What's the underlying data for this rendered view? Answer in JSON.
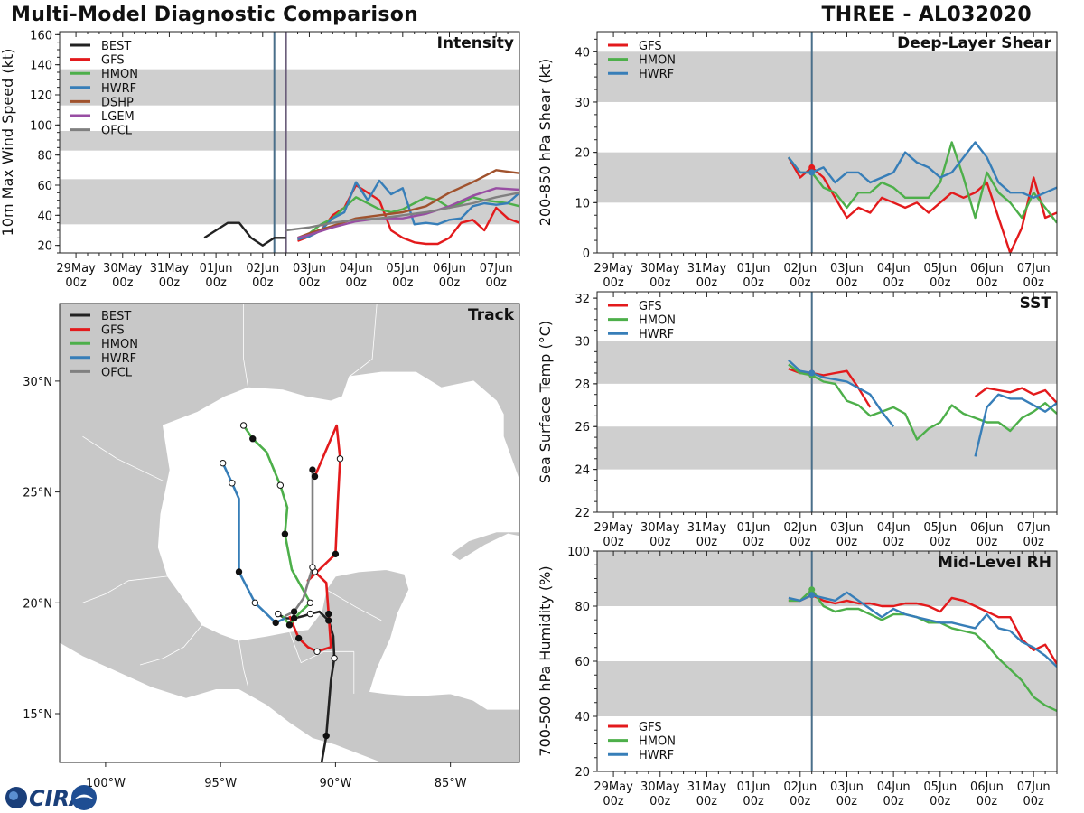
{
  "header": {
    "title": "Multi-Model Diagnostic Comparison",
    "storm": "THREE - AL032020"
  },
  "colors": {
    "BEST": "#222222",
    "GFS": "#e31a1c",
    "HMON": "#4daf4a",
    "HWRF": "#377eb8",
    "DSHP": "#a0522d",
    "LGEM": "#984ea3",
    "OFCL": "#808080",
    "band": "#cfcfcf",
    "land": "#c8c8c8",
    "sea": "#ffffff",
    "vline": "#4a6f8a",
    "vline2": "#6b5e7a"
  },
  "logo": {
    "text": "CIRA"
  },
  "time_ticks": {
    "values": [
      0,
      1,
      2,
      3,
      4,
      5,
      6,
      7,
      8,
      9
    ],
    "labels": [
      [
        "29May",
        "00z"
      ],
      [
        "30May",
        "00z"
      ],
      [
        "31May",
        "00z"
      ],
      [
        "01Jun",
        "00z"
      ],
      [
        "02Jun",
        "00z"
      ],
      [
        "03Jun",
        "00z"
      ],
      [
        "04Jun",
        "00z"
      ],
      [
        "05Jun",
        "00z"
      ],
      [
        "06Jun",
        "00z"
      ],
      [
        "07Jun",
        "00z"
      ]
    ],
    "xlim": [
      -0.35,
      9.5
    ]
  },
  "chart_data": [
    {
      "id": "intensity",
      "type": "line",
      "title": "Intensity",
      "ylabel": "10m Max Wind Speed (kt)",
      "ylim": [
        15,
        162
      ],
      "yticks": [
        20,
        40,
        60,
        80,
        100,
        120,
        140,
        160
      ],
      "bands": [
        [
          34,
          64
        ],
        [
          83,
          96
        ],
        [
          113,
          137
        ]
      ],
      "vlines": [
        {
          "x": 4.25,
          "color": "vline"
        },
        {
          "x": 4.5,
          "color": "vline2"
        }
      ],
      "legend": [
        "BEST",
        "GFS",
        "HMON",
        "HWRF",
        "DSHP",
        "LGEM",
        "OFCL"
      ],
      "series": [
        {
          "name": "BEST",
          "x": [
            2.75,
            3.0,
            3.25,
            3.5,
            3.75,
            4.0,
            4.25,
            4.5
          ],
          "y": [
            25,
            30,
            35,
            35,
            25,
            20,
            25,
            25
          ]
        },
        {
          "name": "GFS",
          "x": [
            4.75,
            5.0,
            5.25,
            5.5,
            5.75,
            6.0,
            6.25,
            6.5,
            6.75,
            7.0,
            7.25,
            7.5,
            7.75,
            8.0,
            8.25,
            8.5,
            8.75,
            9.0,
            9.25,
            9.5
          ],
          "y": [
            23,
            26,
            30,
            40,
            45,
            60,
            55,
            50,
            30,
            25,
            22,
            21,
            21,
            25,
            35,
            37,
            30,
            45,
            38,
            35
          ]
        },
        {
          "name": "HMON",
          "x": [
            4.75,
            5.0,
            5.25,
            5.5,
            5.75,
            6.0,
            6.25,
            6.5,
            6.75,
            7.0,
            7.25,
            7.5,
            7.75,
            8.0,
            8.25,
            8.5,
            8.75,
            9.0,
            9.25,
            9.5
          ],
          "y": [
            24,
            28,
            34,
            38,
            45,
            52,
            48,
            44,
            42,
            44,
            48,
            52,
            50,
            45,
            48,
            52,
            50,
            49,
            48,
            46
          ]
        },
        {
          "name": "HWRF",
          "x": [
            4.75,
            5.0,
            5.25,
            5.5,
            5.75,
            6.0,
            6.25,
            6.5,
            6.75,
            7.0,
            7.25,
            7.5,
            7.75,
            8.0,
            8.25,
            8.5,
            8.75,
            9.0,
            9.25,
            9.5
          ],
          "y": [
            24,
            26,
            30,
            38,
            42,
            62,
            50,
            63,
            54,
            58,
            34,
            35,
            34,
            37,
            38,
            46,
            48,
            47,
            48,
            55
          ]
        },
        {
          "name": "DSHP",
          "x": [
            4.75,
            5.0,
            5.5,
            6.0,
            6.5,
            7.0,
            7.5,
            8.0,
            8.5,
            9.0,
            9.5
          ],
          "y": [
            25,
            28,
            33,
            38,
            40,
            42,
            46,
            55,
            62,
            70,
            68
          ]
        },
        {
          "name": "LGEM",
          "x": [
            4.75,
            5.0,
            5.5,
            6.0,
            6.5,
            7.0,
            7.5,
            8.0,
            8.5,
            9.0,
            9.5
          ],
          "y": [
            25,
            27,
            32,
            36,
            38,
            38,
            41,
            46,
            53,
            58,
            57
          ]
        },
        {
          "name": "OFCL",
          "x": [
            4.5,
            5.0,
            5.5,
            6.0,
            6.5,
            7.0,
            7.5,
            8.0,
            8.5,
            9.0,
            9.5
          ],
          "y": [
            30,
            32,
            35,
            37,
            38,
            40,
            42,
            45,
            48,
            52,
            55
          ]
        }
      ]
    },
    {
      "id": "shear",
      "type": "line",
      "title": "Deep-Layer Shear",
      "ylabel": "200-850 hPa Shear (kt)",
      "ylim": [
        0,
        44
      ],
      "yticks": [
        0,
        10,
        20,
        30,
        40
      ],
      "bands": [
        [
          10,
          20
        ],
        [
          30,
          40
        ]
      ],
      "vlines": [
        {
          "x": 4.25,
          "color": "vline"
        }
      ],
      "legend": [
        "GFS",
        "HMON",
        "HWRF"
      ],
      "series": [
        {
          "name": "GFS",
          "x": [
            3.75,
            4.0,
            4.25,
            4.5,
            4.75,
            5.0,
            5.25,
            5.5,
            5.75,
            6.0,
            6.25,
            6.5,
            6.75,
            7.0,
            7.25,
            7.5,
            7.75,
            8.0,
            8.25,
            8.5,
            8.75,
            9.0,
            9.25,
            9.5
          ],
          "y": [
            19,
            15,
            17,
            15,
            11,
            7,
            9,
            8,
            11,
            10,
            9,
            10,
            8,
            10,
            12,
            11,
            12,
            14,
            7,
            0,
            5,
            15,
            7,
            8
          ]
        },
        {
          "name": "HMON",
          "x": [
            3.75,
            4.0,
            4.25,
            4.5,
            4.75,
            5.0,
            5.25,
            5.5,
            5.75,
            6.0,
            6.25,
            6.5,
            6.75,
            7.0,
            7.25,
            7.5,
            7.75,
            8.0,
            8.25,
            8.5,
            8.75,
            9.0,
            9.25,
            9.5
          ],
          "y": [
            19,
            16,
            16,
            13,
            12,
            9,
            12,
            12,
            14,
            13,
            11,
            11,
            11,
            14,
            22,
            15,
            7,
            16,
            12,
            10,
            7,
            12,
            9,
            6
          ]
        },
        {
          "name": "HWRF",
          "x": [
            3.75,
            4.0,
            4.25,
            4.5,
            4.75,
            5.0,
            5.25,
            5.5,
            5.75,
            6.0,
            6.25,
            6.5,
            6.75,
            7.0,
            7.25,
            7.5,
            7.75,
            8.0,
            8.25,
            8.5,
            8.75,
            9.0,
            9.25,
            9.5
          ],
          "y": [
            19,
            16,
            16,
            17,
            14,
            16,
            16,
            14,
            15,
            16,
            20,
            18,
            17,
            15,
            16,
            19,
            22,
            19,
            14,
            12,
            12,
            11,
            12,
            13
          ]
        }
      ]
    },
    {
      "id": "sst",
      "type": "line",
      "title": "SST",
      "ylabel": "Sea Surface Temp (°C)",
      "ylim": [
        22,
        32.3
      ],
      "yticks": [
        22,
        24,
        26,
        28,
        30,
        32
      ],
      "bands": [
        [
          24,
          26
        ],
        [
          28,
          30
        ]
      ],
      "vlines": [
        {
          "x": 4.25,
          "color": "vline"
        }
      ],
      "legend": [
        "GFS",
        "HMON",
        "HWRF"
      ],
      "series": [
        {
          "name": "GFS",
          "x": [
            3.75,
            4.0,
            4.25,
            4.5,
            4.75,
            5.0,
            5.25,
            5.5
          ],
          "y": [
            28.7,
            28.5,
            28.5,
            28.4,
            28.5,
            28.6,
            27.8,
            26.9
          ]
        },
        {
          "name": "GFS",
          "x": [
            7.75,
            8.0,
            8.25,
            8.5,
            8.75,
            9.0,
            9.25,
            9.5
          ],
          "y": [
            27.4,
            27.8,
            27.7,
            27.6,
            27.8,
            27.5,
            27.7,
            27.1
          ]
        },
        {
          "name": "HMON",
          "x": [
            3.75,
            4.0,
            4.25,
            4.5,
            4.75,
            5.0,
            5.25,
            5.5,
            5.75,
            6.0,
            6.25,
            6.5,
            6.75,
            7.0,
            7.25,
            7.5,
            7.75,
            8.0,
            8.25,
            8.5,
            8.75,
            9.0,
            9.25,
            9.5
          ],
          "y": [
            28.9,
            28.5,
            28.4,
            28.1,
            28.0,
            27.2,
            27.0,
            26.5,
            26.7,
            26.9,
            26.6,
            25.4,
            25.9,
            26.2,
            27.0,
            26.6,
            26.4,
            26.2,
            26.2,
            25.8,
            26.4,
            26.7,
            27.1,
            26.6
          ]
        },
        {
          "name": "HWRF",
          "x": [
            3.75,
            4.0,
            4.25,
            4.5,
            4.75,
            5.0,
            5.25,
            5.5,
            5.75,
            6.0
          ],
          "y": [
            29.1,
            28.6,
            28.5,
            28.3,
            28.2,
            28.1,
            27.8,
            27.5,
            26.7,
            26.0
          ]
        },
        {
          "name": "HWRF",
          "x": [
            7.75,
            8.0,
            8.25,
            8.5,
            8.75,
            9.0,
            9.25,
            9.5
          ],
          "y": [
            24.6,
            26.9,
            27.5,
            27.3,
            27.3,
            27.0,
            26.7,
            27.1
          ]
        }
      ]
    },
    {
      "id": "rh",
      "type": "line",
      "title": "Mid-Level RH",
      "ylabel": "700-500 hPa Humidity (%)",
      "ylim": [
        20,
        100
      ],
      "yticks": [
        20,
        40,
        60,
        80,
        100
      ],
      "bands": [
        [
          40,
          60
        ],
        [
          80,
          100
        ]
      ],
      "vlines": [
        {
          "x": 4.25,
          "color": "vline"
        }
      ],
      "legend": [
        "GFS",
        "HMON",
        "HWRF"
      ],
      "legend_pos": "bottom-left",
      "series": [
        {
          "name": "GFS",
          "x": [
            3.75,
            4.0,
            4.25,
            4.5,
            4.75,
            5.0,
            5.25,
            5.5,
            5.75,
            6.0,
            6.25,
            6.5,
            6.75,
            7.0,
            7.25,
            7.5,
            7.75,
            8.0,
            8.25,
            8.5,
            8.75,
            9.0,
            9.25,
            9.5
          ],
          "y": [
            82,
            82,
            84,
            82,
            81,
            82,
            81,
            81,
            80,
            80,
            81,
            81,
            80,
            78,
            83,
            82,
            80,
            78,
            76,
            76,
            68,
            64,
            66,
            59
          ]
        },
        {
          "name": "HMON",
          "x": [
            3.75,
            4.0,
            4.25,
            4.5,
            4.75,
            5.0,
            5.25,
            5.5,
            5.75,
            6.0,
            6.25,
            6.5,
            6.75,
            7.0,
            7.25,
            7.5,
            7.75,
            8.0,
            8.25,
            8.5,
            8.75,
            9.0,
            9.25,
            9.5
          ],
          "y": [
            82,
            82,
            86,
            80,
            78,
            79,
            79,
            77,
            75,
            77,
            77,
            76,
            74,
            74,
            72,
            71,
            70,
            66,
            61,
            57,
            53,
            47,
            44,
            42
          ]
        },
        {
          "name": "HWRF",
          "x": [
            3.75,
            4.0,
            4.25,
            4.5,
            4.75,
            5.0,
            5.25,
            5.5,
            5.75,
            6.0,
            6.25,
            6.5,
            6.75,
            7.0,
            7.25,
            7.5,
            7.75,
            8.0,
            8.25,
            8.5,
            8.75,
            9.0,
            9.25,
            9.5
          ],
          "y": [
            83,
            82,
            84,
            83,
            82,
            85,
            82,
            79,
            76,
            79,
            77,
            76,
            75,
            74,
            74,
            73,
            72,
            77,
            72,
            71,
            67,
            65,
            62,
            58
          ]
        }
      ]
    },
    {
      "id": "track",
      "type": "scatter",
      "title": "Track",
      "xlim": [
        -102.0,
        -82.0
      ],
      "ylim": [
        12.8,
        33.5
      ],
      "xticks": [
        -100,
        -95,
        -90,
        -85
      ],
      "xtick_labels": [
        "100°W",
        "95°W",
        "90°W",
        "85°W"
      ],
      "yticks": [
        15,
        20,
        25,
        30
      ],
      "ytick_labels": [
        "15°N",
        "20°N",
        "25°N",
        "30°N"
      ],
      "legend": [
        "BEST",
        "GFS",
        "HMON",
        "HWRF",
        "OFCL"
      ],
      "series": [
        {
          "name": "BEST",
          "lon": [
            -90.6,
            -90.4,
            -90.2,
            -90.05,
            -90.1,
            -90.3,
            -90.7,
            -91.1,
            -91.4,
            -91.8,
            -92.2,
            -92.5
          ],
          "lat": [
            12.8,
            14.0,
            16.5,
            17.5,
            18.5,
            19.2,
            19.6,
            19.5,
            19.4,
            19.3,
            19.3,
            19.5
          ]
        },
        {
          "name": "GFS",
          "lon": [
            -92.0,
            -91.6,
            -91.2,
            -90.8,
            -90.2,
            -90.3,
            -90.4,
            -90.9,
            -91.2,
            -90.0,
            -89.9,
            -89.8,
            -89.95,
            -90.9
          ],
          "lat": [
            19.4,
            18.4,
            18.0,
            17.8,
            18.0,
            19.5,
            20.9,
            21.4,
            21.0,
            22.2,
            24.5,
            26.5,
            28.0,
            25.7
          ]
        },
        {
          "name": "HMON",
          "lon": [
            -92.3,
            -92.0,
            -91.6,
            -91.1,
            -91.9,
            -92.2,
            -92.1,
            -92.4,
            -93.0,
            -93.6,
            -94.0
          ],
          "lat": [
            19.4,
            19.0,
            19.5,
            20.0,
            21.5,
            23.1,
            24.3,
            25.3,
            26.8,
            27.4,
            28.0
          ]
        },
        {
          "name": "HWRF",
          "lon": [
            -92.2,
            -92.6,
            -93.1,
            -93.5,
            -93.9,
            -94.2,
            -94.2,
            -94.5,
            -94.9
          ],
          "lat": [
            19.3,
            19.1,
            19.6,
            20.0,
            20.8,
            21.4,
            24.7,
            25.4,
            26.3
          ]
        },
        {
          "name": "OFCL",
          "lon": [
            -92.2,
            -91.8,
            -91.4,
            -91.0,
            -91.0,
            -91.0
          ],
          "lat": [
            19.4,
            19.6,
            20.2,
            21.6,
            22.3,
            26.0
          ]
        }
      ]
    }
  ]
}
